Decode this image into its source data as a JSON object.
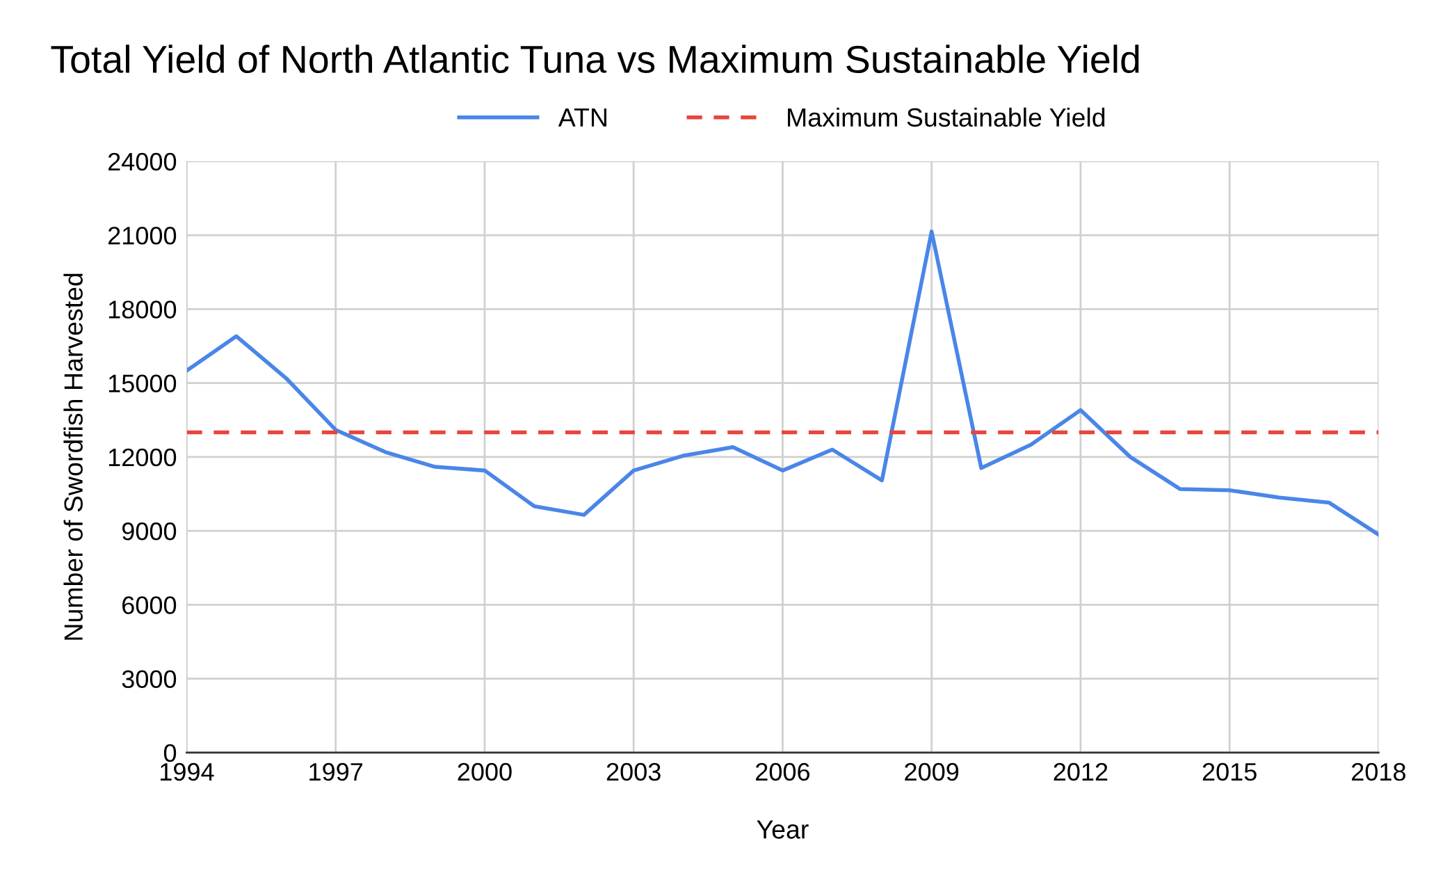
{
  "chart_data": {
    "type": "line",
    "title": "Total Yield of North Atlantic Tuna vs Maximum Sustainable Yield",
    "xlabel": "Year",
    "ylabel": "Number of Swordfish Harvested",
    "x": [
      1994,
      1995,
      1996,
      1997,
      1998,
      1999,
      2000,
      2001,
      2002,
      2003,
      2004,
      2005,
      2006,
      2007,
      2008,
      2009,
      2010,
      2011,
      2012,
      2013,
      2014,
      2015,
      2016,
      2017,
      2018
    ],
    "series": [
      {
        "name": "ATN",
        "color": "#4a86e8",
        "line_style": "solid",
        "values": [
          15500,
          16900,
          15200,
          13100,
          12200,
          11600,
          11450,
          10000,
          9650,
          11450,
          12050,
          12400,
          11450,
          12300,
          11050,
          21150,
          11550,
          12500,
          13900,
          12000,
          10700,
          10650,
          10350,
          10150,
          8850
        ]
      },
      {
        "name": "Maximum Sustainable Yield",
        "color": "#e8453c",
        "line_style": "dashed",
        "values": [
          13000,
          13000,
          13000,
          13000,
          13000,
          13000,
          13000,
          13000,
          13000,
          13000,
          13000,
          13000,
          13000,
          13000,
          13000,
          13000,
          13000,
          13000,
          13000,
          13000,
          13000,
          13000,
          13000,
          13000,
          13000
        ]
      }
    ],
    "xlim": [
      1994,
      2018
    ],
    "xticks": [
      1994,
      1997,
      2000,
      2003,
      2006,
      2009,
      2012,
      2015,
      2018
    ],
    "ylim": [
      0,
      24000
    ],
    "yticks": [
      0,
      3000,
      6000,
      9000,
      12000,
      15000,
      18000,
      21000,
      24000
    ],
    "grid": true,
    "legend": "top",
    "marker": "none"
  }
}
